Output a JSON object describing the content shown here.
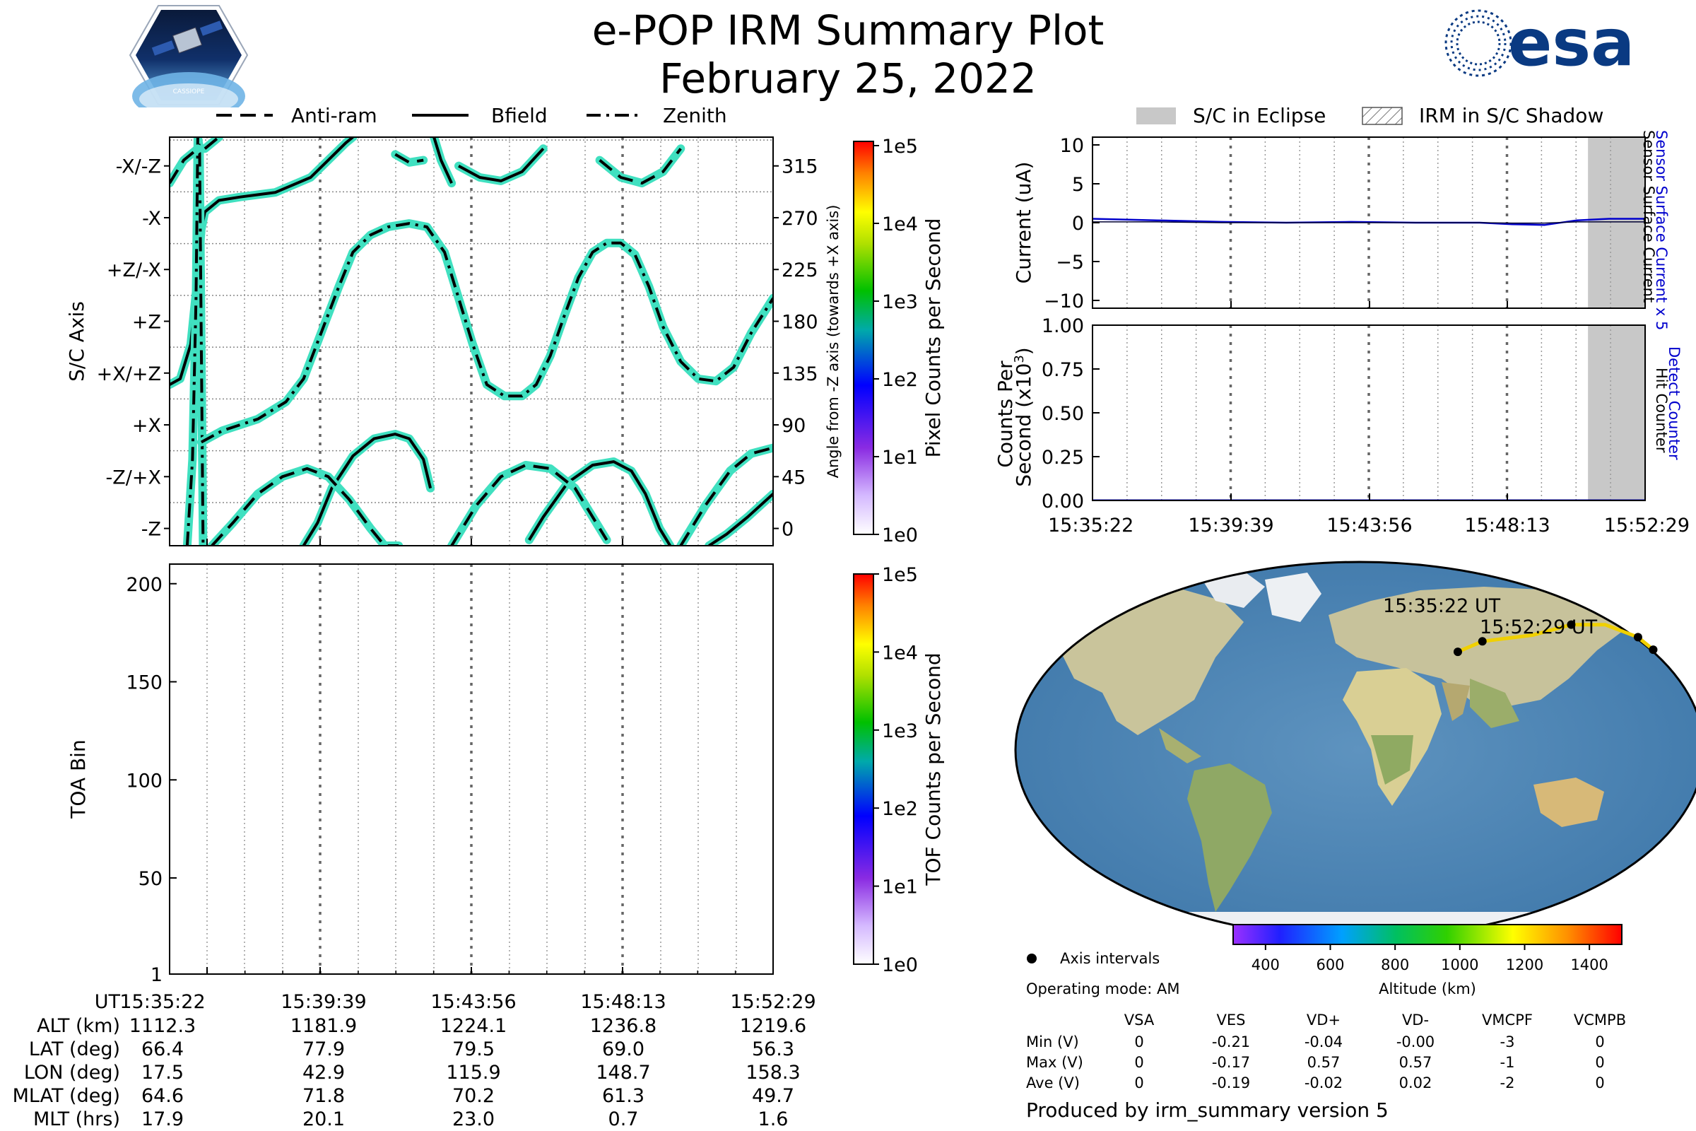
{
  "title": "e-POP IRM Summary Plot",
  "subtitle": "February 25, 2022",
  "logos": {
    "cassiope_text": "CASSIOPE",
    "esa_text": "esa"
  },
  "legend_left": [
    "Anti-ram",
    "Bfield",
    "Zenith"
  ],
  "legend_right": [
    "S/C in Eclipse",
    "IRM in S/C Shadow"
  ],
  "colors": {
    "trace_fill": "#40e0c0",
    "trace_line": "#000000",
    "eclipse": "#c8c8c8",
    "current_line": "#0000cc",
    "count_line": "#0000cc",
    "track": "#f0d000"
  },
  "time_ticks": [
    "15:35:22",
    "15:39:39",
    "15:43:56",
    "15:48:13",
    "15:52:29"
  ],
  "chart_data": [
    {
      "type": "line",
      "name": "attitude",
      "ylabel": "S/C Axis",
      "y2label": "Angle from -Z axis (towards +X axis)",
      "yticks": [
        "-Z",
        "-Z/+X",
        "+X",
        "+X/+Z",
        "+Z",
        "+Z/-X",
        "-X",
        "-X/-Z"
      ],
      "y2ticks": [
        "0",
        "45",
        "90",
        "135",
        "180",
        "225",
        "270",
        "315"
      ],
      "ylim": [
        -15,
        340
      ],
      "x_minutes": [
        0,
        17.12
      ],
      "series": [
        {
          "name": "Bfield",
          "style": "solid",
          "x": [
            0,
            0.3,
            0.6,
            0.8,
            0.9,
            1.0,
            1.4,
            2.0,
            3.0,
            4.0,
            4.5,
            5.0,
            5.2
          ],
          "y": [
            125,
            130,
            160,
            220,
            260,
            275,
            285,
            288,
            292,
            305,
            320,
            335,
            340
          ]
        },
        {
          "name": "Bfield",
          "style": "solid",
          "x": [
            3.8,
            4.2,
            4.6,
            5.2,
            5.8,
            6.4,
            6.8,
            7.2,
            7.4
          ],
          "y": [
            -15,
            5,
            35,
            63,
            78,
            82,
            78,
            60,
            35
          ]
        },
        {
          "name": "Bfield",
          "style": "solid",
          "x": [
            7.5,
            7.7,
            8.0
          ],
          "y": [
            340,
            320,
            300
          ]
        },
        {
          "name": "Bfield",
          "style": "solid",
          "x": [
            8.2,
            8.8,
            9.4,
            10.0,
            10.6
          ],
          "y": [
            315,
            305,
            302,
            310,
            330
          ]
        },
        {
          "name": "Bfield",
          "style": "solid",
          "x": [
            10.2,
            10.6,
            11.3,
            12.0,
            12.6,
            13.1,
            13.5,
            13.9,
            14.2
          ],
          "y": [
            -10,
            10,
            40,
            55,
            58,
            50,
            30,
            0,
            -15
          ]
        },
        {
          "name": "Bfield",
          "style": "solid",
          "x": [
            15.3,
            15.8,
            16.4,
            17.12
          ],
          "y": [
            -15,
            -5,
            10,
            30
          ]
        },
        {
          "name": "Zenith",
          "style": "dashdot",
          "x": [
            0.5,
            0.65,
            0.75,
            0.8,
            0.85,
            0.95
          ],
          "y": [
            -15,
            60,
            200,
            340,
            330,
            -15
          ]
        },
        {
          "name": "Zenith",
          "style": "dashdot",
          "x": [
            0.9,
            1.5,
            2.5,
            3.3,
            3.8,
            4.3,
            4.8,
            5.2,
            5.7,
            6.2,
            6.8,
            7.3,
            7.8,
            8.2,
            8.6,
            9.0,
            9.5,
            10.0,
            10.4,
            10.8,
            11.2,
            11.6,
            12.0,
            12.4,
            12.8,
            13.2,
            13.6,
            14.0,
            14.5,
            15.0,
            15.5,
            16.0,
            16.5,
            17.12
          ],
          "y": [
            75,
            85,
            95,
            110,
            130,
            170,
            210,
            240,
            255,
            262,
            265,
            262,
            240,
            200,
            160,
            125,
            115,
            115,
            125,
            150,
            185,
            218,
            240,
            248,
            248,
            238,
            210,
            175,
            145,
            130,
            128,
            140,
            170,
            200
          ]
        },
        {
          "name": "Anti-ram",
          "style": "dashed",
          "x": [
            0.0,
            0.4,
            0.8
          ],
          "y": [
            300,
            320,
            330
          ]
        },
        {
          "name": "Anti-ram",
          "style": "dashed",
          "x": [
            1.0,
            1.4
          ],
          "y": [
            330,
            340
          ]
        },
        {
          "name": "Anti-ram",
          "style": "dashed",
          "x": [
            1.2,
            1.8,
            2.5,
            3.2,
            3.9,
            4.5,
            5.1,
            5.7,
            6.1,
            6.5
          ],
          "y": [
            -15,
            5,
            30,
            45,
            52,
            45,
            25,
            0,
            -15,
            -15
          ]
        },
        {
          "name": "Anti-ram",
          "style": "dashed",
          "x": [
            6.4,
            6.8,
            7.2
          ],
          "y": [
            325,
            318,
            320
          ]
        },
        {
          "name": "Anti-ram",
          "style": "dashed",
          "x": [
            8.0,
            8.7,
            9.4,
            10.1,
            10.8,
            11.5,
            12.0,
            12.4
          ],
          "y": [
            -15,
            20,
            45,
            55,
            52,
            35,
            10,
            -10
          ]
        },
        {
          "name": "Anti-ram",
          "style": "dashed",
          "x": [
            12.2,
            12.8,
            13.4,
            14.0,
            14.5
          ],
          "y": [
            320,
            305,
            300,
            310,
            330
          ]
        },
        {
          "name": "Anti-ram",
          "style": "dashed",
          "x": [
            14.5,
            15.2,
            15.9,
            16.5,
            17.12
          ],
          "y": [
            -15,
            20,
            50,
            65,
            70
          ]
        }
      ]
    },
    {
      "type": "heatmap",
      "name": "tof",
      "ylabel": "TOA Bin",
      "yticks": [
        1,
        50,
        100,
        150,
        200
      ],
      "ylim": [
        1,
        210
      ],
      "values": []
    },
    {
      "type": "line",
      "name": "current",
      "ylabel": "Current (uA)",
      "yticks": [
        10,
        5,
        0,
        -5,
        -10
      ],
      "ylim": [
        -11,
        11
      ],
      "right_labels": [
        "Sensor Surface Current x 5",
        "Sensor Surface Current"
      ],
      "series": [
        {
          "name": "Sensor Surface Current x 5",
          "x": [
            0,
            2,
            4,
            6,
            8,
            10,
            12,
            13,
            14,
            15,
            16,
            17.12
          ],
          "y": [
            0.5,
            0.3,
            0.1,
            0.0,
            0.1,
            0.0,
            0.0,
            -0.2,
            -0.3,
            0.3,
            0.5,
            0.5
          ]
        },
        {
          "name": "Sensor Surface Current",
          "x": [
            0,
            2,
            4,
            6,
            8,
            10,
            12,
            13,
            14,
            15,
            16,
            17.12
          ],
          "y": [
            0.1,
            0.1,
            0.0,
            0.0,
            0.0,
            0.0,
            0.0,
            -0.05,
            -0.05,
            0.1,
            0.1,
            0.1
          ]
        }
      ],
      "eclipse_minutes": [
        15.35,
        17.12
      ]
    },
    {
      "type": "line",
      "name": "counts",
      "ylabel": "Counts Per Second (x10^3)",
      "yticks": [
        "1.00",
        "0.75",
        "0.50",
        "0.25",
        "0.00"
      ],
      "ylim": [
        0,
        1.0
      ],
      "right_labels": [
        "Detect Counter",
        "Hit Counter"
      ],
      "series": [
        {
          "name": "Detect Counter",
          "x": [
            0,
            17.12
          ],
          "y": [
            0.0,
            0.0
          ]
        },
        {
          "name": "Hit Counter",
          "x": [
            0,
            17.12
          ],
          "y": [
            0.0,
            0.0
          ]
        }
      ],
      "eclipse_minutes": [
        15.35,
        17.12
      ]
    }
  ],
  "colorbars": {
    "pixel": {
      "label": "Pixel Counts per Second",
      "ticks": [
        "1e5",
        "1e4",
        "1e3",
        "1e2",
        "1e1",
        "1e0"
      ]
    },
    "tof": {
      "label": "TOF Counts per Second",
      "ticks": [
        "1e5",
        "1e4",
        "1e3",
        "1e2",
        "1e1",
        "1e0"
      ]
    },
    "altitude": {
      "label": "Altitude (km)",
      "ticks": [
        "400",
        "600",
        "800",
        "1000",
        "1200",
        "1400"
      ]
    }
  },
  "map": {
    "start_label": "15:35:22 UT",
    "end_label": "15:52:29 UT",
    "track": [
      [
        55,
        47
      ],
      [
        70,
        52
      ],
      [
        100,
        55
      ],
      [
        125,
        60
      ],
      [
        145,
        60
      ],
      [
        160,
        54
      ],
      [
        165,
        48
      ]
    ],
    "markers": [
      [
        55,
        47
      ],
      [
        70,
        52
      ],
      [
        125,
        60
      ],
      [
        160,
        54
      ],
      [
        165,
        48
      ]
    ],
    "legend": "Axis intervals",
    "mode": "Operating mode: AM"
  },
  "bottom_table": {
    "row_labels": [
      "UT",
      "ALT (km)",
      "LAT (deg)",
      "LON (deg)",
      "MLAT (deg)",
      "MLT (hrs)"
    ],
    "rows": [
      [
        "15:35:22",
        "15:39:39",
        "15:43:56",
        "15:48:13",
        "15:52:29"
      ],
      [
        "1112.3",
        "1181.9",
        "1224.1",
        "1236.8",
        "1219.6"
      ],
      [
        "66.4",
        "77.9",
        "79.5",
        "69.0",
        "56.3"
      ],
      [
        "17.5",
        "42.9",
        "115.9",
        "148.7",
        "158.3"
      ],
      [
        "64.6",
        "71.8",
        "70.2",
        "61.3",
        "49.7"
      ],
      [
        "17.9",
        "20.1",
        "23.0",
        "0.7",
        "1.6"
      ]
    ]
  },
  "voltage_table": {
    "columns": [
      "VSA",
      "VES",
      "VD+",
      "VD-",
      "VMCPF",
      "VCMPB"
    ],
    "rows": [
      {
        "label": "Min (V)",
        "values": [
          "0",
          "-0.21",
          "-0.04",
          "-0.00",
          "-3",
          "0"
        ]
      },
      {
        "label": "Max (V)",
        "values": [
          "0",
          "-0.17",
          "0.57",
          "0.57",
          "-1",
          "0"
        ]
      },
      {
        "label": "Ave (V)",
        "values": [
          "0",
          "-0.19",
          "-0.02",
          "0.02",
          "-2",
          "0"
        ]
      }
    ]
  },
  "footer": "Produced by irm_summary version 5"
}
